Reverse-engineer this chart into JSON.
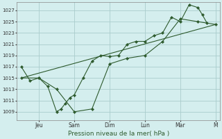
{
  "background_color": "#d4eeee",
  "grid_color": "#aacccc",
  "line_color": "#2d5a2d",
  "xlabel": "Pression niveau de la mer( hPa )",
  "ylim": [
    1007.5,
    1028.5
  ],
  "xlim": [
    -0.5,
    22.5
  ],
  "yticks": [
    1009,
    1011,
    1013,
    1015,
    1017,
    1019,
    1021,
    1023,
    1025,
    1027
  ],
  "xtick_positions": [
    2,
    6,
    10,
    14,
    18,
    22
  ],
  "xtick_labels": [
    "Jeu",
    "Sam",
    "Dim",
    "Lun",
    "Mar",
    "M"
  ],
  "trend_x": [
    0,
    22
  ],
  "trend_y": [
    1015.0,
    1024.5
  ],
  "sparse_x": [
    0,
    2,
    4,
    6,
    8,
    10,
    12,
    14,
    16,
    18,
    20,
    22
  ],
  "sparse_y": [
    1015.0,
    1015.0,
    1013.0,
    1009.0,
    1009.5,
    1017.5,
    1018.5,
    1019.0,
    1021.5,
    1025.5,
    1025.0,
    1024.5
  ],
  "dense_x": [
    0,
    1,
    2,
    3,
    4,
    4.5,
    5,
    5.5,
    6,
    7,
    8,
    9,
    10,
    11,
    12,
    13,
    14,
    15,
    16,
    17,
    18,
    19,
    20,
    20.5,
    21
  ],
  "dense_y": [
    1017.0,
    1014.5,
    1015.0,
    1013.5,
    1009.0,
    1009.5,
    1010.5,
    1011.5,
    1012.0,
    1015.0,
    1018.0,
    1019.0,
    1018.8,
    1019.0,
    1021.0,
    1021.5,
    1021.5,
    1022.5,
    1023.0,
    1025.8,
    1025.0,
    1028.0,
    1027.5,
    1026.2,
    1024.8
  ]
}
